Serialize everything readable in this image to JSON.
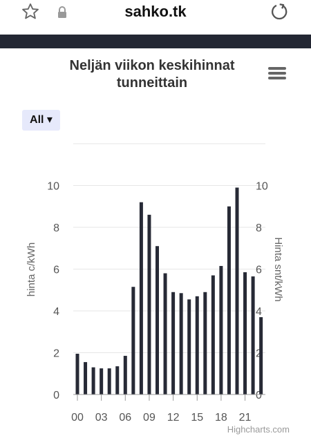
{
  "browser": {
    "url": "sahko.tk",
    "icons": [
      "star-icon",
      "lock-icon",
      "reload-icon"
    ]
  },
  "chart_data": {
    "type": "bar",
    "title": "Neljän viikon keskihinnat tunneittain",
    "title_lines": [
      "Neljän viikon keskihinnat",
      "tunneittain"
    ],
    "range_selector": "All ▾",
    "ylabel": "hinta c/kWh",
    "ylabel_right": "Hinta snt/kWh",
    "ylim": [
      0,
      12
    ],
    "yticks": [
      0,
      2,
      4,
      6,
      8,
      10
    ],
    "yticks_right": [
      0,
      2,
      4,
      6,
      8,
      10
    ],
    "xticks": [
      "00",
      "03",
      "06",
      "09",
      "12",
      "15",
      "18",
      "21"
    ],
    "categories": [
      "00",
      "01",
      "02",
      "03",
      "04",
      "05",
      "06",
      "07",
      "08",
      "09",
      "10",
      "11",
      "12",
      "13",
      "14",
      "15",
      "16",
      "17",
      "18",
      "19",
      "20",
      "21",
      "22",
      "23"
    ],
    "values": [
      1.95,
      1.55,
      1.3,
      1.25,
      1.25,
      1.35,
      1.85,
      5.15,
      9.2,
      8.6,
      7.1,
      5.8,
      4.9,
      4.85,
      4.55,
      4.7,
      4.9,
      5.7,
      6.15,
      9.0,
      9.9,
      5.85,
      5.65,
      3.7
    ],
    "bar_color": "#272a36",
    "credits": "Highcharts.com"
  }
}
